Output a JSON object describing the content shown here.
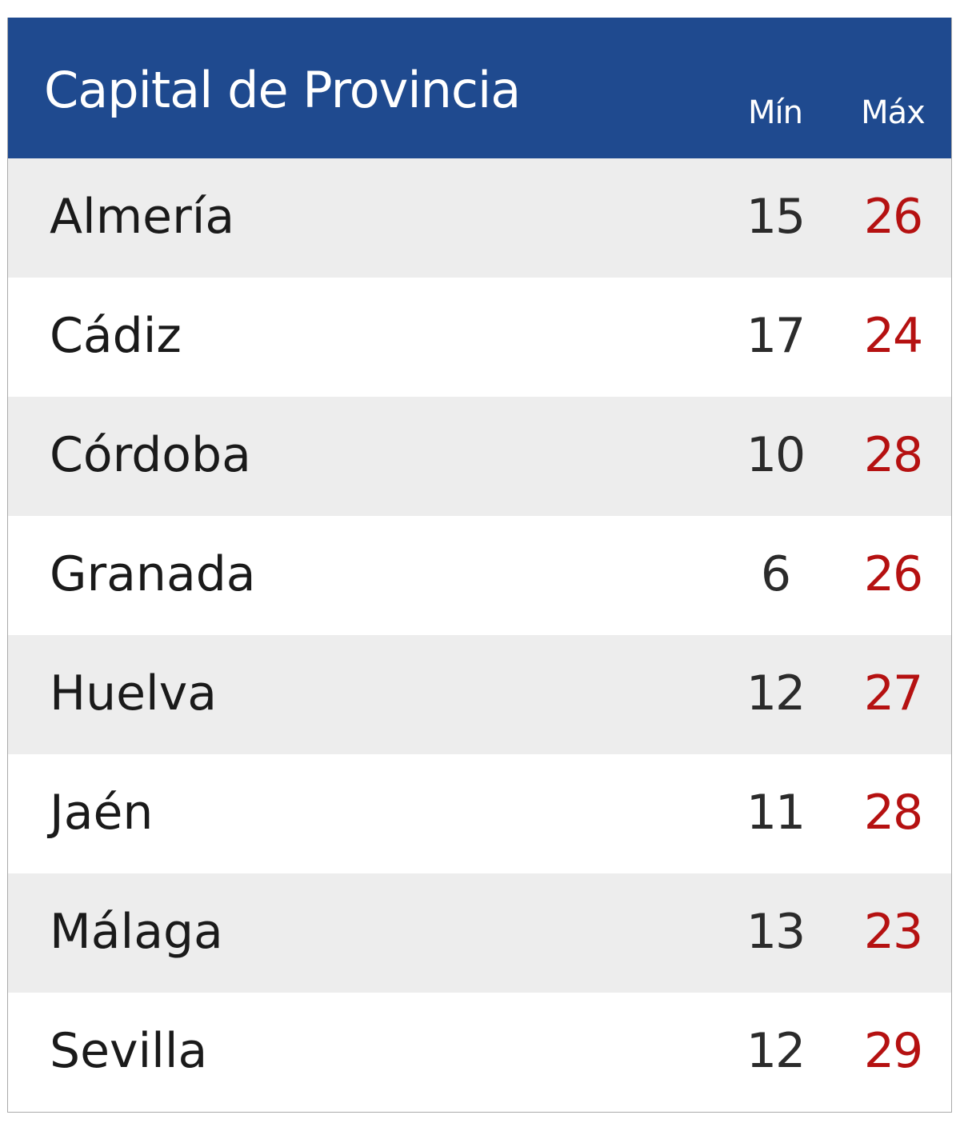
{
  "header": {
    "title": "Capital de Provincia",
    "min_label": "Mín",
    "max_label": "Máx"
  },
  "colors": {
    "header_bg": "#1f4a8f",
    "stripe": "#ededed",
    "max_text": "#b51111"
  },
  "rows": [
    {
      "city": "Almería",
      "min": "15",
      "max": "26"
    },
    {
      "city": "Cádiz",
      "min": "17",
      "max": "24"
    },
    {
      "city": "Córdoba",
      "min": "10",
      "max": "28"
    },
    {
      "city": "Granada",
      "min": "6",
      "max": "26"
    },
    {
      "city": "Huelva",
      "min": "12",
      "max": "27"
    },
    {
      "city": "Jaén",
      "min": "11",
      "max": "28"
    },
    {
      "city": "Málaga",
      "min": "13",
      "max": "23"
    },
    {
      "city": "Sevilla",
      "min": "12",
      "max": "29"
    }
  ]
}
